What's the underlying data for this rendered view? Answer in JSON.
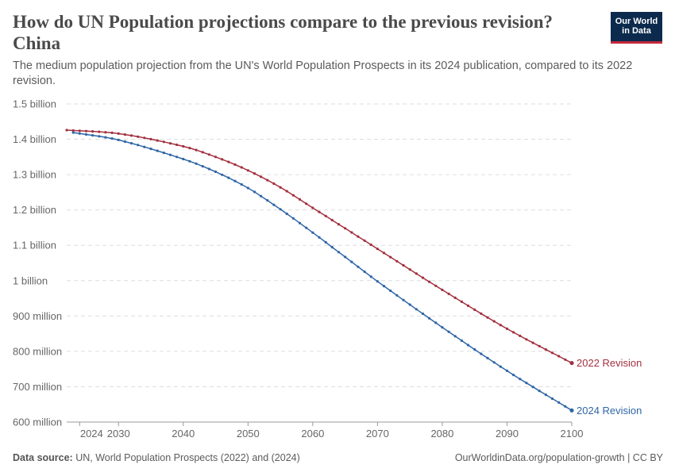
{
  "header": {
    "title": "How do UN Population projections compare to the previous revision? China",
    "subtitle": "The medium population projection from the UN's World Population Prospects in its 2024 publication, compared to its 2022 revision.",
    "logo_line1": "Our World",
    "logo_line2": "in Data"
  },
  "footer": {
    "source_label": "Data source:",
    "source_text": "UN, World Population Prospects (2022) and (2024)",
    "right_text": "OurWorldinData.org/population-growth | CC BY"
  },
  "colors": {
    "rev2022": "#a2303f",
    "rev2024": "#2f66a6",
    "grid": "#dddddd",
    "axis": "#999999"
  },
  "chart_data": {
    "type": "line",
    "ylim": [
      600000000,
      1500000000
    ],
    "xlim": [
      2022,
      2100
    ],
    "grid": "horizontal dashed",
    "legend": "labels at line ends (right)",
    "y_ticks": [
      {
        "value": 600000000,
        "label": "600 million"
      },
      {
        "value": 700000000,
        "label": "700 million"
      },
      {
        "value": 800000000,
        "label": "800 million"
      },
      {
        "value": 900000000,
        "label": "900 million"
      },
      {
        "value": 1000000000,
        "label": "1 billion"
      },
      {
        "value": 1100000000,
        "label": "1.1 billion"
      },
      {
        "value": 1200000000,
        "label": "1.2 billion"
      },
      {
        "value": 1300000000,
        "label": "1.3 billion"
      },
      {
        "value": 1400000000,
        "label": "1.4 billion"
      },
      {
        "value": 1500000000,
        "label": "1.5 billion"
      }
    ],
    "x_ticks": [
      {
        "value": 2024,
        "label": "2024"
      },
      {
        "value": 2030,
        "label": "2030"
      },
      {
        "value": 2040,
        "label": "2040"
      },
      {
        "value": 2050,
        "label": "2050"
      },
      {
        "value": 2060,
        "label": "2060"
      },
      {
        "value": 2070,
        "label": "2070"
      },
      {
        "value": 2080,
        "label": "2080"
      },
      {
        "value": 2090,
        "label": "2090"
      },
      {
        "value": 2100,
        "label": "2100"
      }
    ],
    "series": [
      {
        "name": "2022 Revision",
        "color": "#a2303f",
        "start_year": 2022,
        "anchors": [
          [
            2022,
            1426000000
          ],
          [
            2030,
            1416000000
          ],
          [
            2040,
            1380000000
          ],
          [
            2045,
            1350000000
          ],
          [
            2050,
            1312000000
          ],
          [
            2055,
            1264000000
          ],
          [
            2060,
            1206000000
          ],
          [
            2065,
            1148000000
          ],
          [
            2070,
            1090000000
          ],
          [
            2080,
            974000000
          ],
          [
            2090,
            864000000
          ],
          [
            2100,
            767000000
          ]
        ]
      },
      {
        "name": "2024 Revision",
        "color": "#2f66a6",
        "start_year": 2023,
        "anchors": [
          [
            2023,
            1419000000
          ],
          [
            2030,
            1398000000
          ],
          [
            2040,
            1344000000
          ],
          [
            2045,
            1308000000
          ],
          [
            2050,
            1262000000
          ],
          [
            2055,
            1202000000
          ],
          [
            2060,
            1136000000
          ],
          [
            2065,
            1067000000
          ],
          [
            2070,
            998000000
          ],
          [
            2080,
            868000000
          ],
          [
            2090,
            745000000
          ],
          [
            2100,
            633000000
          ]
        ]
      }
    ]
  }
}
